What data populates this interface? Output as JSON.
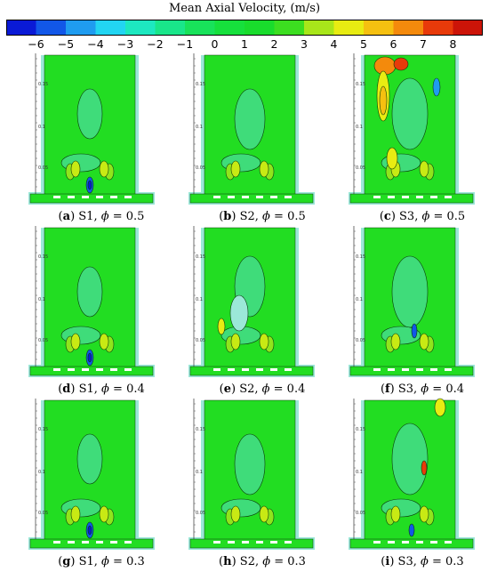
{
  "chart_data": {
    "type": "heatmap",
    "title": "Mean Axial Velocity, (m/s)",
    "colorbar": {
      "ticks": [
        -6,
        -5,
        -4,
        -3,
        -2,
        -1,
        0,
        1,
        2,
        3,
        4,
        5,
        6,
        7,
        8
      ],
      "colors": [
        "#0a1ad6",
        "#1257e8",
        "#1f9cf0",
        "#22d5f2",
        "#1de8c0",
        "#19e68a",
        "#18e25a",
        "#16e03c",
        "#19dc2c",
        "#3cde20",
        "#a8e61a",
        "#e8ec12",
        "#f5c010",
        "#f48a0c",
        "#e83a0a",
        "#cc1408"
      ]
    },
    "axis_ticks": [
      "0.15",
      "0.1",
      "0.05"
    ],
    "panels": [
      {
        "label": "(a)",
        "case": "S1",
        "phi": "0.5",
        "note": "jet core with negative velocity near burner exit"
      },
      {
        "label": "(b)",
        "case": "S2",
        "phi": "0.5"
      },
      {
        "label": "(c)",
        "case": "S3",
        "phi": "0.5",
        "note": "high velocity region up to ~8 m/s near top"
      },
      {
        "label": "(d)",
        "case": "S1",
        "phi": "0.4"
      },
      {
        "label": "(e)",
        "case": "S2",
        "phi": "0.4"
      },
      {
        "label": "(f)",
        "case": "S3",
        "phi": "0.4"
      },
      {
        "label": "(g)",
        "case": "S1",
        "phi": "0.3"
      },
      {
        "label": "(h)",
        "case": "S2",
        "phi": "0.3"
      },
      {
        "label": "(i)",
        "case": "S3",
        "phi": "0.3"
      }
    ]
  },
  "captions": [
    {
      "label": "a",
      "case": "S1",
      "phi_symbol": "ϕ",
      "eq": " = 0.5"
    },
    {
      "label": "b",
      "case": "S2",
      "phi_symbol": "ϕ",
      "eq": " = 0.5"
    },
    {
      "label": "c",
      "case": "S3",
      "phi_symbol": "ϕ",
      "eq": " = 0.5"
    },
    {
      "label": "d",
      "case": "S1",
      "phi_symbol": "ϕ",
      "eq": " = 0.4"
    },
    {
      "label": "e",
      "case": "S2",
      "phi_symbol": "ϕ",
      "eq": " = 0.4"
    },
    {
      "label": "f",
      "case": "S3",
      "phi_symbol": "ϕ",
      "eq": " = 0.4"
    },
    {
      "label": "g",
      "case": "S1",
      "phi_symbol": "ϕ",
      "eq": " = 0.3"
    },
    {
      "label": "h",
      "case": "S2",
      "phi_symbol": "ϕ",
      "eq": " = 0.3"
    },
    {
      "label": "i",
      "case": "S3",
      "phi_symbol": "ϕ",
      "eq": " = 0.3"
    }
  ]
}
